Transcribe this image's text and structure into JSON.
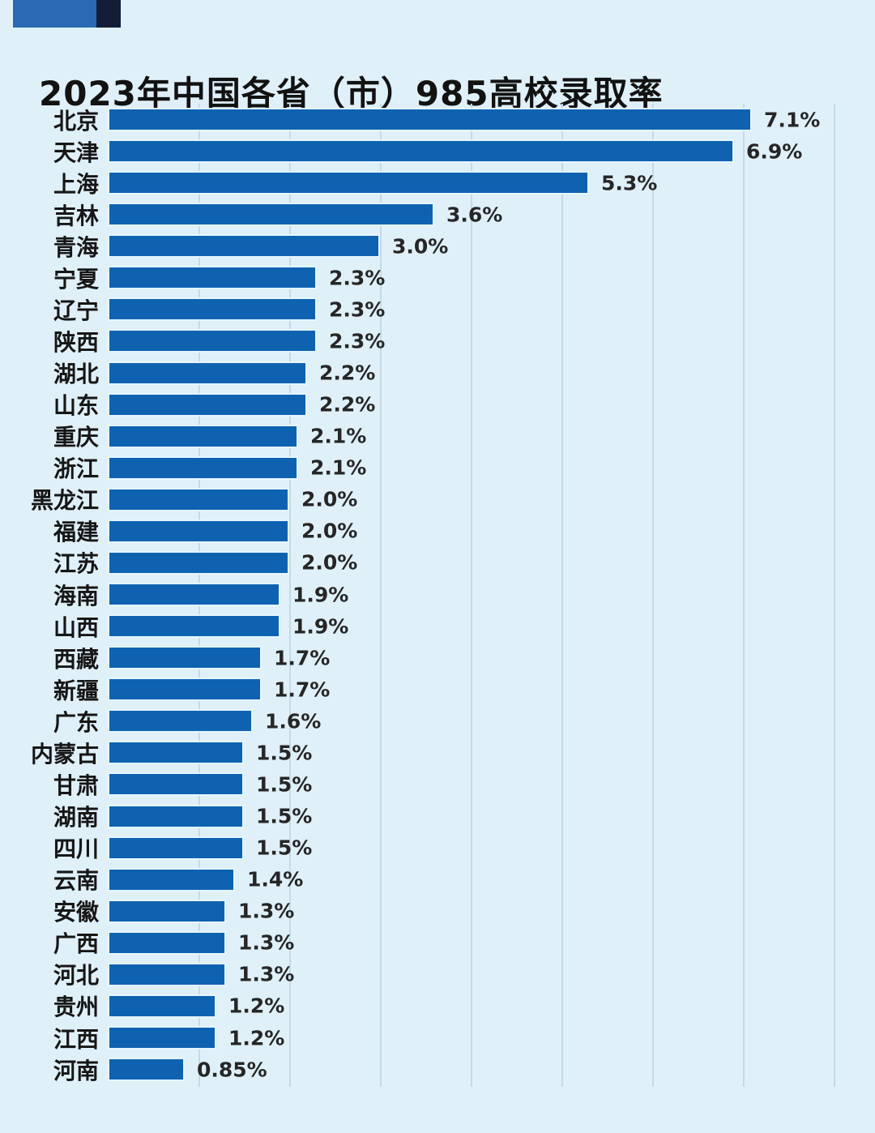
{
  "page": {
    "background_color": "#dff0f9",
    "decoration": {
      "blue_block_color": "#2a6ab3",
      "navy_block_color": "#131d38"
    }
  },
  "chart_data": {
    "type": "bar",
    "orientation": "horizontal",
    "title": "2023年中国各省（市）985高校录取率",
    "xlabel": "",
    "ylabel": "",
    "xlim": [
      0,
      8.4
    ],
    "grid": true,
    "gridline_values_percent": [
      1,
      2,
      3,
      4,
      5,
      6,
      7,
      8
    ],
    "unit": "%",
    "bar_color": "#0f62b0",
    "bar_border_color": "#e4f6fe",
    "gridline_color": "#c4dae6",
    "title_color": "#121212",
    "label_color": "#161616",
    "value_color": "#262626",
    "categories": [
      "北京",
      "天津",
      "上海",
      "吉林",
      "青海",
      "宁夏",
      "辽宁",
      "陕西",
      "湖北",
      "山东",
      "重庆",
      "浙江",
      "黑龙江",
      "福建",
      "江苏",
      "海南",
      "山西",
      "西藏",
      "新疆",
      "广东",
      "内蒙古",
      "甘肃",
      "湖南",
      "四川",
      "云南",
      "安徽",
      "广西",
      "河北",
      "贵州",
      "江西",
      "河南"
    ],
    "values": [
      7.1,
      6.9,
      5.3,
      3.6,
      3.0,
      2.3,
      2.3,
      2.3,
      2.2,
      2.2,
      2.1,
      2.1,
      2.0,
      2.0,
      2.0,
      1.9,
      1.9,
      1.7,
      1.7,
      1.6,
      1.5,
      1.5,
      1.5,
      1.5,
      1.4,
      1.3,
      1.3,
      1.3,
      1.2,
      1.2,
      0.85
    ],
    "value_labels": [
      "7.1%",
      "6.9%",
      "5.3%",
      "3.6%",
      "3.0%",
      "2.3%",
      "2.3%",
      "2.3%",
      "2.2%",
      "2.2%",
      "2.1%",
      "2.1%",
      "2.0%",
      "2.0%",
      "2.0%",
      "1.9%",
      "1.9%",
      "1.7%",
      "1.7%",
      "1.6%",
      "1.5%",
      "1.5%",
      "1.5%",
      "1.5%",
      "1.4%",
      "1.3%",
      "1.3%",
      "1.3%",
      "1.2%",
      "1.2%",
      "0.85%"
    ]
  }
}
